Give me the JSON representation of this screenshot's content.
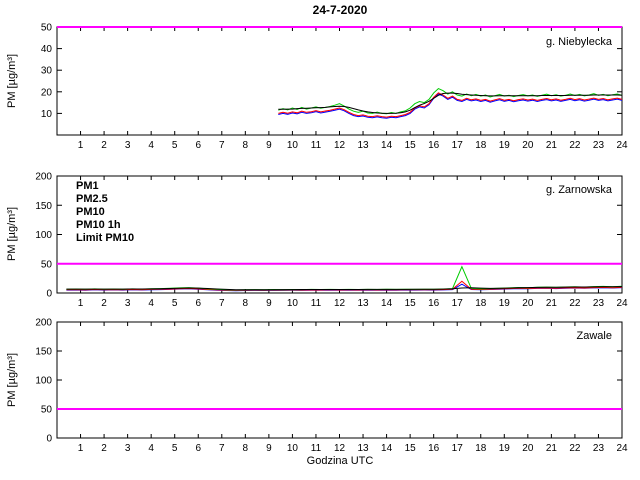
{
  "figure": {
    "title": "24-7-2020",
    "xlabel": "Godzina UTC",
    "ylabel": "PM [µg/m³]",
    "xticks": [
      1,
      2,
      3,
      4,
      5,
      6,
      7,
      8,
      9,
      10,
      11,
      12,
      13,
      14,
      15,
      16,
      17,
      18,
      19,
      20,
      21,
      22,
      23,
      24
    ]
  },
  "legend": {
    "items": [
      {
        "label": "PM1",
        "color": "#0000ff"
      },
      {
        "label": "PM2.5",
        "color": "#ff0000"
      },
      {
        "label": "PM10",
        "color": "#00cc00"
      },
      {
        "label": "PM10 1h",
        "color": "#000000"
      },
      {
        "label": "Limit PM10",
        "color": "#ff00ff"
      }
    ]
  },
  "chart_data": [
    {
      "type": "line",
      "station": "g. Niebylecka",
      "xlim": [
        0,
        24
      ],
      "ylim": [
        0,
        50
      ],
      "yticks": [
        10,
        20,
        30,
        40,
        50
      ],
      "limit": {
        "label": "Limit PM10",
        "value": 50,
        "color": "#ff00ff"
      },
      "series": [
        {
          "name": "PM1",
          "color": "#0000ff",
          "x0": 9.4,
          "dx": 0.2,
          "values": [
            9.5,
            10,
            9.6,
            10.2,
            9.8,
            10.5,
            10,
            10.3,
            10.8,
            10.2,
            10.6,
            11,
            11.5,
            12,
            11.2,
            10,
            9,
            8.5,
            8.8,
            8.2,
            8,
            8.4,
            8,
            7.8,
            8.2,
            8,
            8.5,
            9,
            10,
            12,
            13,
            12.5,
            14,
            17,
            19,
            18,
            16.5,
            17.5,
            16,
            15.5,
            16.5,
            15.8,
            16.2,
            15.5,
            16,
            15.2,
            15.8,
            16.3,
            15.6,
            16,
            15.4,
            15.9,
            16.2,
            15.7,
            16.1,
            15.5,
            16,
            16.4,
            15.8,
            16.2,
            15.6,
            16,
            16.5,
            15.9,
            16.3,
            15.7,
            16.1,
            16.6,
            16,
            16.4,
            15.8,
            16.2,
            16.6,
            16
          ]
        },
        {
          "name": "PM2.5",
          "color": "#ff0000",
          "x0": 9.4,
          "dx": 0.2,
          "values": [
            10,
            10.5,
            10.1,
            10.7,
            10.3,
            11,
            10.5,
            10.8,
            11.3,
            10.7,
            11.1,
            11.5,
            12,
            12.5,
            11.7,
            10.5,
            9.5,
            9,
            9.3,
            8.7,
            8.5,
            8.9,
            8.5,
            8.3,
            8.7,
            8.5,
            9,
            9.5,
            10.5,
            12.5,
            13.5,
            13,
            14.5,
            17.5,
            19.5,
            18.5,
            17,
            18,
            16.5,
            16,
            17,
            16.3,
            16.7,
            16,
            16.5,
            15.7,
            16.3,
            16.8,
            16.1,
            16.5,
            15.9,
            16.4,
            16.7,
            16.2,
            16.6,
            16,
            16.5,
            16.9,
            16.3,
            16.7,
            16.1,
            16.5,
            17,
            16.4,
            16.8,
            16.2,
            16.6,
            17.1,
            16.5,
            16.9,
            16.3,
            16.7,
            17.1,
            16.5
          ]
        },
        {
          "name": "PM10",
          "color": "#00cc00",
          "x0": 9.4,
          "dx": 0.2,
          "values": [
            11.5,
            12.2,
            11.6,
            12.5,
            11.8,
            12.8,
            12,
            12.5,
            13,
            12.4,
            12.8,
            13.2,
            13.8,
            14.5,
            13.4,
            12,
            11,
            10.5,
            11,
            10.2,
            10,
            10.6,
            10,
            9.8,
            10.4,
            10,
            10.7,
            11.2,
            12.5,
            14.5,
            15.5,
            15,
            16.5,
            19.5,
            21.5,
            20.5,
            19,
            20,
            18.5,
            18,
            19,
            18.2,
            18.8,
            18,
            18.5,
            17.6,
            18.2,
            18.8,
            18,
            18.4,
            17.8,
            18.3,
            18.7,
            18.1,
            18.5,
            17.9,
            18.4,
            18.9,
            18.2,
            18.6,
            18,
            18.4,
            19,
            18.3,
            18.8,
            18.1,
            18.5,
            19.1,
            18.4,
            18.8,
            18.2,
            18.6,
            19,
            18.4
          ]
        },
        {
          "name": "PM10 1h",
          "color": "#000000",
          "x0": 9.4,
          "dx": 0.2,
          "values": [
            11.9,
            11.9,
            12,
            12,
            12.2,
            12.3,
            12.4,
            12.5,
            12.6,
            12.7,
            12.8,
            13,
            13.2,
            13.3,
            13.2,
            12.8,
            12.2,
            11.6,
            11.1,
            10.7,
            10.4,
            10.2,
            10.1,
            10,
            10,
            10.1,
            10.3,
            10.7,
            11.5,
            12.7,
            13.8,
            14.6,
            15.6,
            17,
            18.4,
            19.2,
            19.4,
            19.4,
            19.2,
            18.9,
            18.7,
            18.5,
            18.4,
            18.3,
            18.2,
            18.1,
            18.1,
            18.2,
            18.2,
            18.2,
            18.2,
            18.2,
            18.2,
            18.2,
            18.2,
            18.2,
            18.3,
            18.3,
            18.3,
            18.3,
            18.3,
            18.3,
            18.4,
            18.4,
            18.4,
            18.4,
            18.4,
            18.5,
            18.5,
            18.5,
            18.5,
            18.5,
            18.5,
            18.4
          ]
        }
      ]
    },
    {
      "type": "line",
      "station": "g. Zarnowska",
      "xlim": [
        0,
        24
      ],
      "ylim": [
        0,
        200
      ],
      "yticks": [
        0,
        50,
        100,
        150,
        200
      ],
      "limit": {
        "label": "Limit PM10",
        "value": 50,
        "color": "#ff00ff"
      },
      "series": [
        {
          "name": "PM1",
          "color": "#0000ff",
          "x0": 0.4,
          "dx": 0.4,
          "values": [
            5,
            5.2,
            4.8,
            5.5,
            5,
            5.3,
            4.9,
            5.4,
            5.1,
            5.6,
            5.8,
            6.2,
            6.8,
            7.2,
            6.5,
            5.5,
            4.8,
            4.2,
            4,
            4.2,
            4.5,
            4.3,
            4.6,
            4.4,
            4.7,
            4.5,
            4.8,
            4.6,
            4.9,
            4.7,
            4.8,
            4.6,
            4.9,
            4.7,
            5,
            4.8,
            5.1,
            4.9,
            5.2,
            5,
            5.3,
            5.8,
            15,
            6,
            5.5,
            6,
            6.5,
            7,
            7.5,
            7.2,
            7.8,
            8,
            7.6,
            8.2,
            8.5,
            8.1,
            8.8,
            9,
            8.6,
            9.2
          ]
        },
        {
          "name": "PM2.5",
          "color": "#ff0000",
          "x0": 0.4,
          "dx": 0.4,
          "values": [
            5.5,
            5.7,
            5.3,
            6,
            5.5,
            5.8,
            5.4,
            5.9,
            5.6,
            6.1,
            6.3,
            6.7,
            7.3,
            7.7,
            7,
            6,
            5.3,
            4.7,
            4.5,
            4.7,
            5,
            4.8,
            5.1,
            4.9,
            5.2,
            5,
            5.3,
            5.1,
            5.4,
            5.2,
            5.3,
            5.1,
            5.4,
            5.2,
            5.5,
            5.3,
            5.6,
            5.4,
            5.7,
            5.5,
            5.8,
            6.3,
            20,
            6.5,
            6,
            6.5,
            7,
            7.5,
            8,
            7.7,
            8.3,
            8.5,
            8.1,
            8.7,
            9,
            8.6,
            9.3,
            9.5,
            9.1,
            9.7
          ]
        },
        {
          "name": "PM10",
          "color": "#00cc00",
          "x0": 0.4,
          "dx": 0.4,
          "values": [
            6.5,
            6.8,
            6.3,
            7,
            6.5,
            6.9,
            6.4,
            7,
            6.6,
            7.2,
            7.5,
            8,
            8.8,
            9.2,
            8.4,
            7,
            6.2,
            5.5,
            5.2,
            5.5,
            5.8,
            5.6,
            5.9,
            5.7,
            6,
            5.8,
            6.1,
            5.9,
            6.2,
            6,
            6.1,
            5.9,
            6.2,
            6,
            6.3,
            6.1,
            6.4,
            6.2,
            6.5,
            6.3,
            6.8,
            7.5,
            45,
            7.8,
            7,
            7.6,
            8.2,
            8.8,
            9.4,
            9,
            9.8,
            10,
            9.5,
            10.2,
            10.6,
            10.1,
            10.9,
            11.2,
            10.7,
            11.4
          ]
        },
        {
          "name": "PM10 1h",
          "color": "#000000",
          "x0": 0.4,
          "dx": 0.4,
          "values": [
            6.6,
            6.6,
            6.7,
            6.7,
            6.7,
            6.7,
            6.7,
            6.8,
            6.8,
            7,
            7.3,
            7.7,
            8.2,
            8.5,
            8.3,
            7.7,
            6.9,
            6.2,
            5.7,
            5.5,
            5.5,
            5.6,
            5.7,
            5.8,
            5.8,
            5.9,
            5.9,
            6,
            6,
            6,
            6,
            6,
            6.1,
            6.1,
            6.1,
            6.2,
            6.2,
            6.3,
            6.3,
            6.4,
            6.6,
            7.2,
            8.5,
            8.9,
            8.3,
            7.9,
            8,
            8.4,
            8.9,
            9.2,
            9.5,
            9.7,
            9.8,
            10,
            10.2,
            10.3,
            10.5,
            10.7,
            10.8,
            11
          ]
        }
      ]
    },
    {
      "type": "line",
      "station": "Zawale",
      "xlim": [
        0,
        24
      ],
      "ylim": [
        0,
        200
      ],
      "yticks": [
        0,
        50,
        100,
        150,
        200
      ],
      "limit": {
        "label": "Limit PM10",
        "value": 50,
        "color": "#ff00ff"
      },
      "series": []
    }
  ]
}
